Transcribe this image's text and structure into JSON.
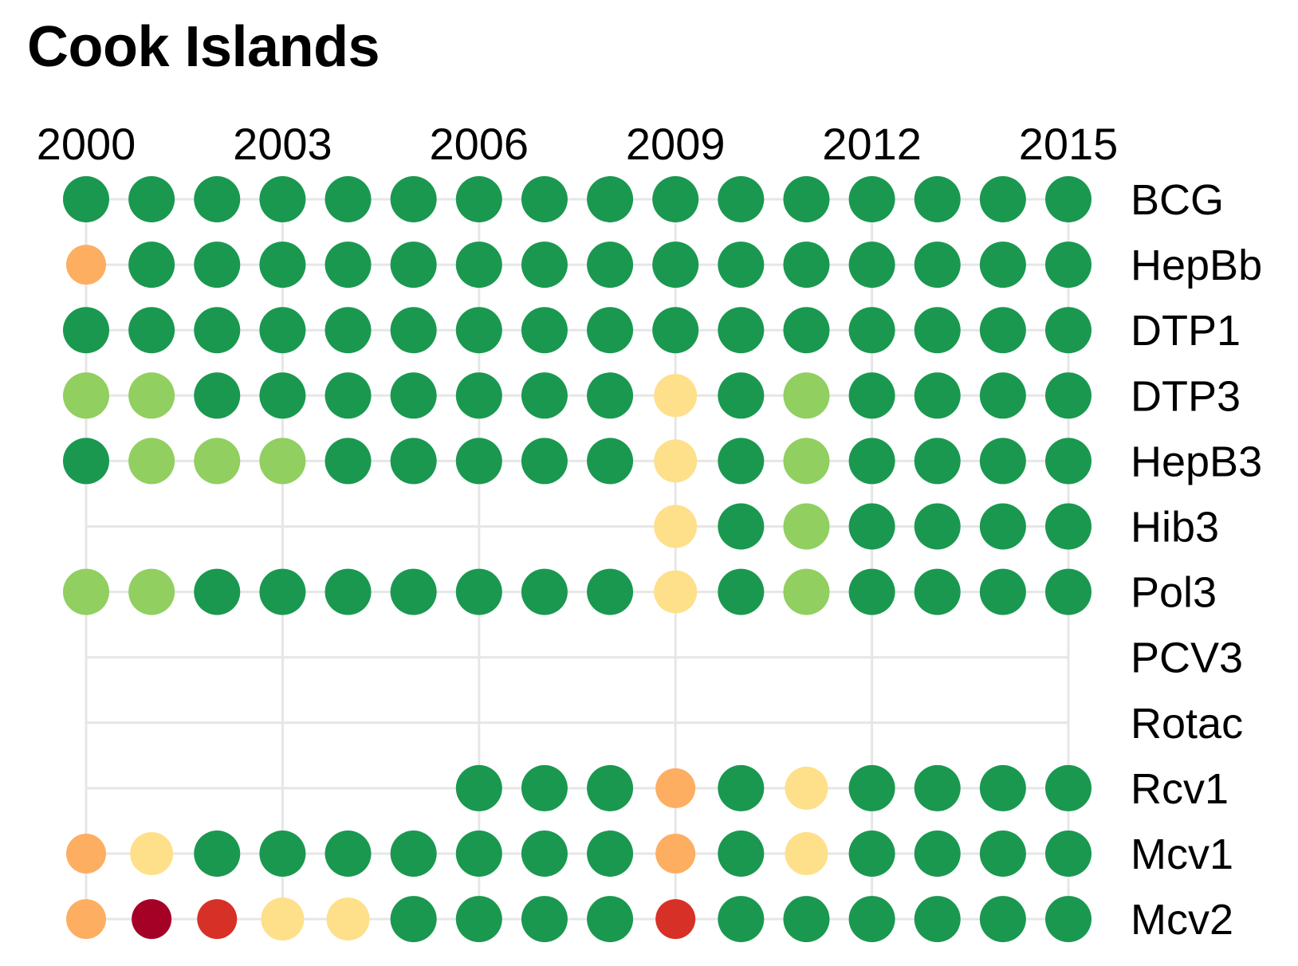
{
  "chart_data": {
    "type": "scatter",
    "title": "Cook Islands",
    "xlabel": "",
    "ylabel": "",
    "x_ticks": [
      "2000",
      "2003",
      "2006",
      "2009",
      "2012",
      "2015"
    ],
    "years": [
      2000,
      2001,
      2002,
      2003,
      2004,
      2005,
      2006,
      2007,
      2008,
      2009,
      2010,
      2011,
      2012,
      2013,
      2014,
      2015
    ],
    "xlim": [
      2000,
      2015
    ],
    "grid": true,
    "legend": "none",
    "color_scale": {
      "1": "#a50026",
      "2": "#d73027",
      "3": "#fdae61",
      "4": "#fee08b",
      "5": "#91cf60",
      "6": "#1a9850"
    },
    "series": [
      {
        "name": "BCG",
        "values": [
          6,
          6,
          6,
          6,
          6,
          6,
          6,
          6,
          6,
          6,
          6,
          6,
          6,
          6,
          6,
          6
        ]
      },
      {
        "name": "HepBb",
        "values": [
          3,
          6,
          6,
          6,
          6,
          6,
          6,
          6,
          6,
          6,
          6,
          6,
          6,
          6,
          6,
          6
        ]
      },
      {
        "name": "DTP1",
        "values": [
          6,
          6,
          6,
          6,
          6,
          6,
          6,
          6,
          6,
          6,
          6,
          6,
          6,
          6,
          6,
          6
        ]
      },
      {
        "name": "DTP3",
        "values": [
          5,
          5,
          6,
          6,
          6,
          6,
          6,
          6,
          6,
          4,
          6,
          5,
          6,
          6,
          6,
          6
        ]
      },
      {
        "name": "HepB3",
        "values": [
          6,
          5,
          5,
          5,
          6,
          6,
          6,
          6,
          6,
          4,
          6,
          5,
          6,
          6,
          6,
          6
        ]
      },
      {
        "name": "Hib3",
        "values": [
          null,
          null,
          null,
          null,
          null,
          null,
          null,
          null,
          null,
          4,
          6,
          5,
          6,
          6,
          6,
          6
        ]
      },
      {
        "name": "Pol3",
        "values": [
          5,
          5,
          6,
          6,
          6,
          6,
          6,
          6,
          6,
          4,
          6,
          5,
          6,
          6,
          6,
          6
        ]
      },
      {
        "name": "PCV3",
        "values": [
          null,
          null,
          null,
          null,
          null,
          null,
          null,
          null,
          null,
          null,
          null,
          null,
          null,
          null,
          null,
          null
        ]
      },
      {
        "name": "Rotac",
        "values": [
          null,
          null,
          null,
          null,
          null,
          null,
          null,
          null,
          null,
          null,
          null,
          null,
          null,
          null,
          null,
          null
        ]
      },
      {
        "name": "Rcv1",
        "values": [
          null,
          null,
          null,
          null,
          null,
          null,
          6,
          6,
          6,
          3,
          6,
          4,
          6,
          6,
          6,
          6
        ]
      },
      {
        "name": "Mcv1",
        "values": [
          3,
          4,
          6,
          6,
          6,
          6,
          6,
          6,
          6,
          3,
          6,
          4,
          6,
          6,
          6,
          6
        ]
      },
      {
        "name": "Mcv2",
        "values": [
          3,
          1,
          2,
          4,
          4,
          6,
          6,
          6,
          6,
          2,
          6,
          6,
          6,
          6,
          6,
          6
        ]
      }
    ]
  }
}
